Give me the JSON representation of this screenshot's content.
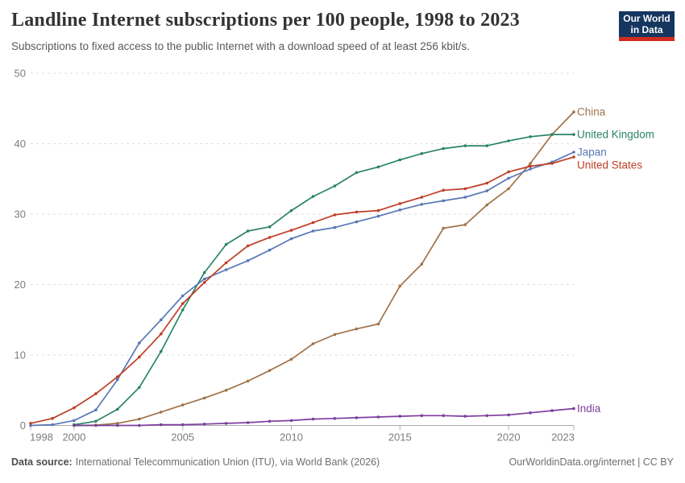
{
  "header": {
    "title": "Landline Internet subscriptions per 100 people, 1998 to 2023",
    "subtitle": "Subscriptions to fixed access to the public Internet with a download speed of at least 256 kbit/s.",
    "logo": {
      "line1": "Our World",
      "line2": "in Data"
    }
  },
  "footer": {
    "source_label": "Data source:",
    "source_text": "International Telecommunication Union (ITU), via World Bank (2026)",
    "link_text": "OurWorldinData.org/internet | CC BY"
  },
  "colors": {
    "background": "#ffffff",
    "gridline": "#dedede",
    "axis_line": "#a9a9a9",
    "tick_mark": "#b5b5b5",
    "tick_text": "#7d7d7d",
    "title": "#333333",
    "subtitle": "#595959",
    "logo_bg": "#15365F",
    "logo_bar": "#D12B1F"
  },
  "chart_data": {
    "type": "line",
    "title": "Landline Internet subscriptions per 100 people, 1998 to 2023",
    "xlabel": "",
    "ylabel": "",
    "xlim": [
      1998,
      2023
    ],
    "ylim": [
      0,
      50
    ],
    "x_ticks": [
      1998,
      2000,
      2005,
      2010,
      2015,
      2020,
      2023
    ],
    "y_ticks": [
      0,
      10,
      20,
      30,
      40,
      50
    ],
    "grid": "horizontal-dashed",
    "legend_position": "right-end-labels",
    "x": [
      1998,
      1999,
      2000,
      2001,
      2002,
      2003,
      2004,
      2005,
      2006,
      2007,
      2008,
      2009,
      2010,
      2011,
      2012,
      2013,
      2014,
      2015,
      2016,
      2017,
      2018,
      2019,
      2020,
      2021,
      2022,
      2023
    ],
    "series": [
      {
        "name": "China",
        "color": "#A0734A",
        "values": [
          null,
          null,
          0.0,
          0.05,
          0.3,
          0.9,
          1.9,
          2.9,
          3.9,
          5.0,
          6.3,
          7.8,
          9.4,
          11.6,
          12.9,
          13.7,
          14.4,
          19.8,
          22.9,
          28.0,
          28.5,
          31.3,
          33.6,
          37.2,
          41.3,
          44.5
        ]
      },
      {
        "name": "United Kingdom",
        "color": "#2C8465",
        "values": [
          null,
          null,
          0.1,
          0.6,
          2.3,
          5.4,
          10.5,
          16.4,
          21.7,
          25.7,
          27.6,
          28.2,
          30.5,
          32.5,
          34.0,
          35.9,
          36.7,
          37.7,
          38.6,
          39.3,
          39.7,
          39.7,
          40.4,
          41.0,
          41.3,
          41.3
        ]
      },
      {
        "name": "Japan",
        "color": "#5878B6",
        "values": [
          0.0,
          0.1,
          0.7,
          2.2,
          6.5,
          11.7,
          15.0,
          18.4,
          20.8,
          22.1,
          23.4,
          24.9,
          26.5,
          27.6,
          28.1,
          28.9,
          29.7,
          30.6,
          31.4,
          31.9,
          32.4,
          33.3,
          35.1,
          36.4,
          37.4,
          38.8
        ]
      },
      {
        "name": "United States",
        "color": "#BE3E26",
        "values": [
          0.3,
          1.0,
          2.5,
          4.5,
          6.9,
          9.7,
          13.0,
          17.3,
          20.3,
          23.1,
          25.5,
          26.7,
          27.7,
          28.8,
          29.9,
          30.3,
          30.5,
          31.5,
          32.4,
          33.4,
          33.6,
          34.4,
          36.0,
          36.8,
          37.2,
          38.1
        ]
      },
      {
        "name": "India",
        "color": "#7C3E9E",
        "values": [
          null,
          null,
          0.0,
          0.0,
          0.0,
          0.0,
          0.1,
          0.1,
          0.2,
          0.3,
          0.4,
          0.6,
          0.7,
          0.9,
          1.0,
          1.1,
          1.2,
          1.3,
          1.4,
          1.4,
          1.3,
          1.4,
          1.5,
          1.8,
          2.1,
          2.4
        ]
      }
    ]
  }
}
